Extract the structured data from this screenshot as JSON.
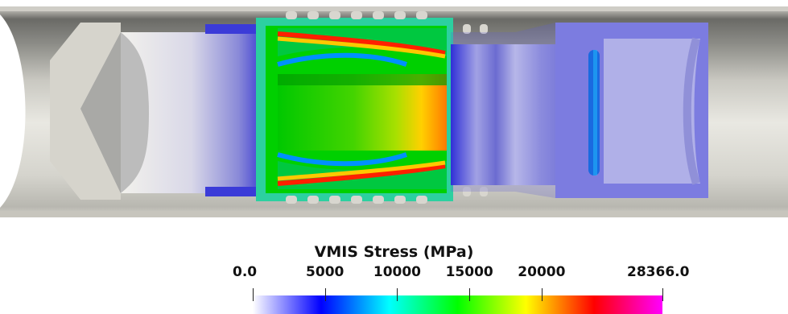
{
  "scene": {
    "description_free": true
  },
  "colorbar": {
    "title": "VMIS Stress (MPa)",
    "ticks": [
      {
        "label": "0.0",
        "value": 0
      },
      {
        "label": "5000",
        "value": 5000
      },
      {
        "label": "10000",
        "value": 10000
      },
      {
        "label": "15000",
        "value": 15000
      },
      {
        "label": "20000",
        "value": 20000
      },
      {
        "label": "28366.0",
        "value": 28366
      }
    ],
    "range": [
      0,
      28366
    ],
    "colormap": [
      "#ffffff",
      "#0000ff",
      "#00ffff",
      "#00ff00",
      "#ffff00",
      "#ff0000",
      "#ff00ff"
    ]
  }
}
